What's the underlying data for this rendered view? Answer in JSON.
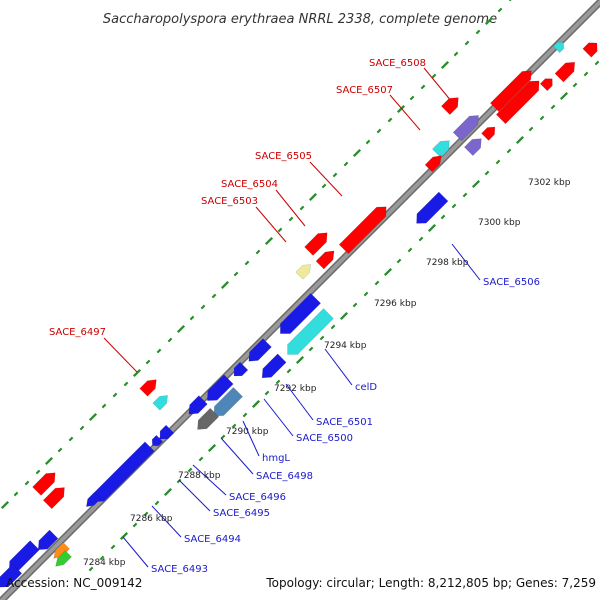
{
  "title": "Saccharopolyspora erythraea NRRL 2338, complete genome",
  "footer": {
    "accession": "Accession: NC_009142",
    "summary": "Topology: circular; Length: 8,212,805 bp; Genes: 7,259"
  },
  "colors": {
    "background": "#ffffff",
    "backbone": "#999999",
    "backbone_edge": "#6b6b6b",
    "dot_track": "#2e8b2e",
    "forward_label": "#cc0000",
    "reverse_label": "#1a1acc",
    "red": "#ff0000",
    "blue": "#1a1ae6",
    "cyan": "#33dddd",
    "purple": "#7a66cc",
    "steelblue": "#4f86b8",
    "yellow": "#eeea99",
    "gray": "#666666",
    "orange": "#ff8c1a",
    "green": "#33cc33"
  },
  "ticks": [
    {
      "label": "7284 kbp"
    },
    {
      "label": "7286 kbp"
    },
    {
      "label": "7288 kbp"
    },
    {
      "label": "7290 kbp"
    },
    {
      "label": "7292 kbp"
    },
    {
      "label": "7294 kbp"
    },
    {
      "label": "7296 kbp"
    },
    {
      "label": "7298 kbp"
    },
    {
      "label": "7300 kbp"
    },
    {
      "label": "7302 kbp"
    }
  ],
  "forward_labels": [
    {
      "label": "SACE_6508"
    },
    {
      "label": "SACE_6507"
    },
    {
      "label": "SACE_6505"
    },
    {
      "label": "SACE_6504"
    },
    {
      "label": "SACE_6503"
    },
    {
      "label": "SACE_6497"
    }
  ],
  "reverse_labels": [
    {
      "label": "SACE_6506"
    },
    {
      "label": "celD"
    },
    {
      "label": "SACE_6501"
    },
    {
      "label": "SACE_6500"
    },
    {
      "label": "hmgL"
    },
    {
      "label": "SACE_6498"
    },
    {
      "label": "SACE_6496"
    },
    {
      "label": "SACE_6495"
    },
    {
      "label": "SACE_6494"
    },
    {
      "label": "SACE_6493"
    }
  ],
  "features": [
    {
      "color": "red",
      "strand": "+"
    },
    {
      "color": "red",
      "strand": "+"
    },
    {
      "color": "red",
      "strand": "+"
    },
    {
      "color": "red",
      "strand": "+"
    },
    {
      "color": "red",
      "strand": "+"
    },
    {
      "color": "purple",
      "strand": "+"
    },
    {
      "color": "cyan",
      "strand": "+"
    },
    {
      "color": "red",
      "strand": "+"
    },
    {
      "color": "red",
      "strand": "+"
    },
    {
      "color": "yellow",
      "strand": "+"
    },
    {
      "color": "red",
      "strand": "+"
    },
    {
      "color": "red",
      "strand": "+"
    },
    {
      "color": "red",
      "strand": "+"
    },
    {
      "color": "cyan",
      "strand": "+"
    },
    {
      "color": "red",
      "strand": "+"
    },
    {
      "color": "red",
      "strand": "+"
    },
    {
      "color": "purple",
      "strand": "+"
    },
    {
      "color": "red",
      "strand": "+"
    },
    {
      "color": "cyan",
      "strand": "+"
    },
    {
      "color": "red",
      "strand": "+"
    },
    {
      "color": "blue",
      "strand": "-"
    },
    {
      "color": "blue",
      "strand": "-"
    },
    {
      "color": "cyan",
      "strand": "-"
    },
    {
      "color": "blue",
      "strand": "-"
    },
    {
      "color": "blue",
      "strand": "-"
    },
    {
      "color": "blue",
      "strand": "-"
    },
    {
      "color": "blue",
      "strand": "-"
    },
    {
      "color": "blue",
      "strand": "-"
    },
    {
      "color": "steelblue",
      "strand": "-"
    },
    {
      "color": "gray",
      "strand": "-"
    },
    {
      "color": "blue",
      "strand": "-"
    },
    {
      "color": "blue",
      "strand": "-"
    },
    {
      "color": "blue",
      "strand": "-"
    },
    {
      "color": "blue",
      "strand": "-"
    },
    {
      "color": "blue",
      "strand": "-"
    },
    {
      "color": "blue",
      "strand": "-"
    },
    {
      "color": "orange",
      "strand": "-"
    },
    {
      "color": "green",
      "strand": "-"
    },
    {
      "color": "blue",
      "strand": "-"
    }
  ]
}
